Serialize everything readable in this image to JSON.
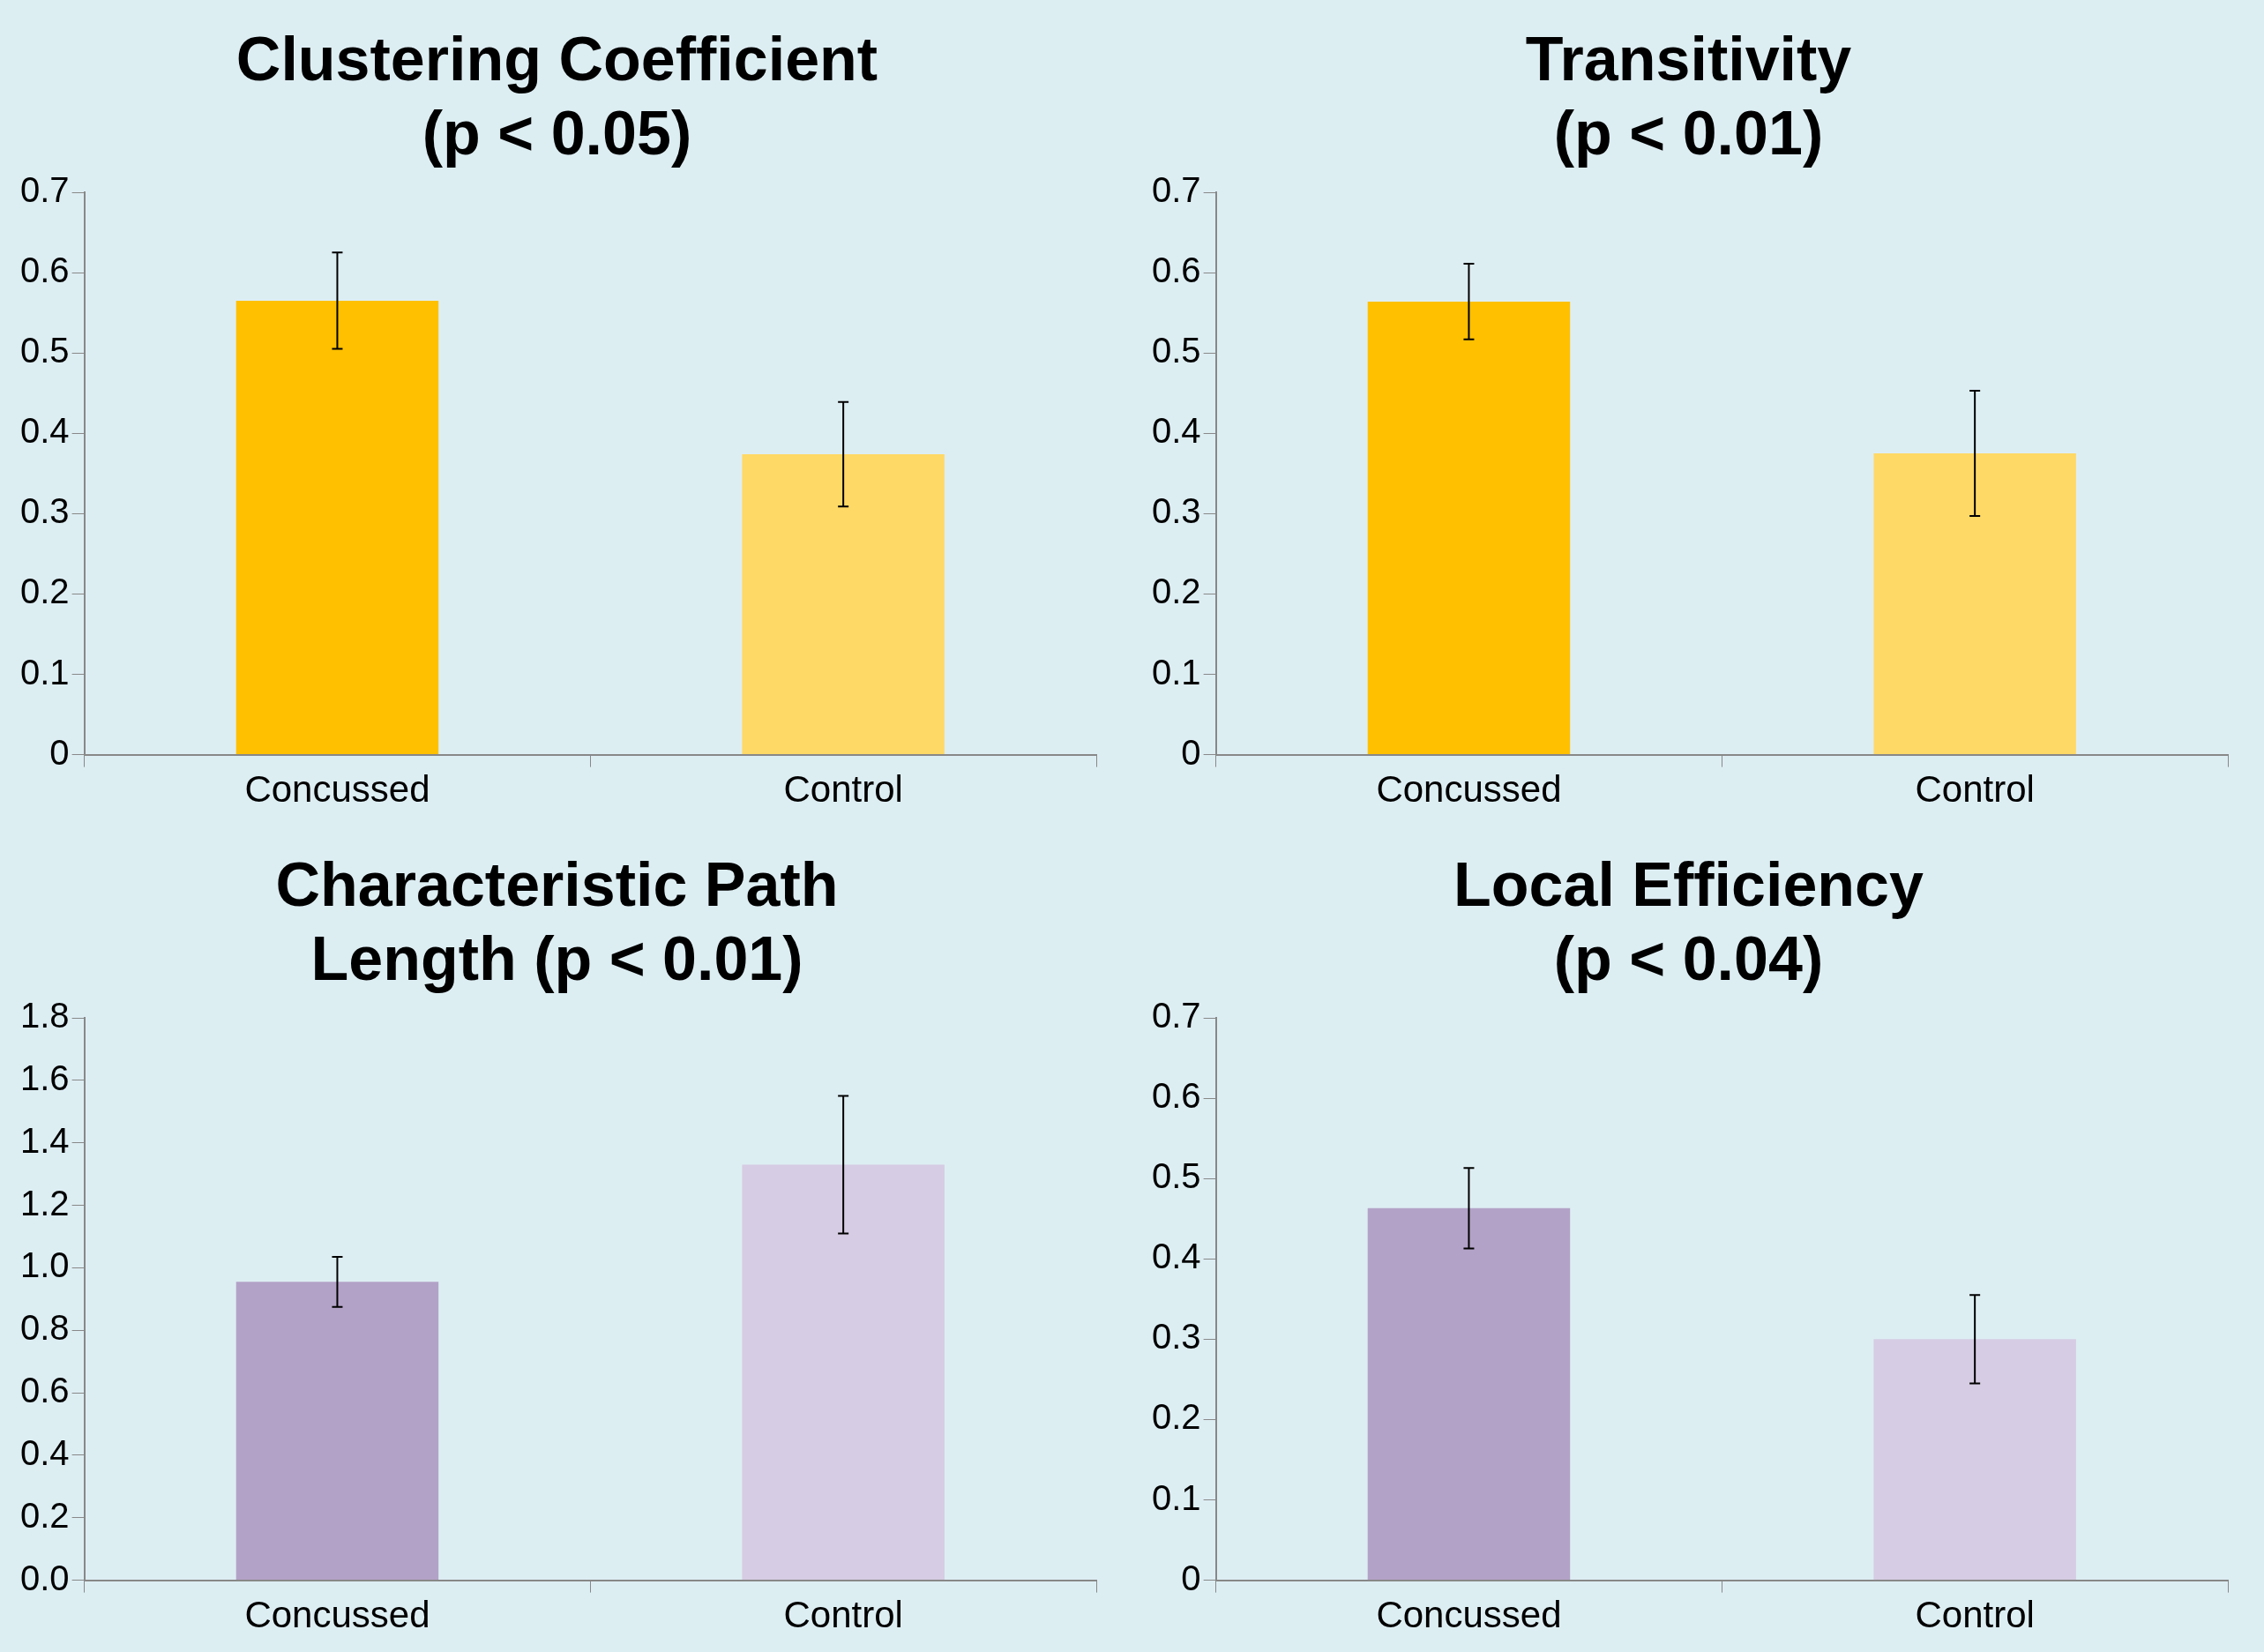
{
  "chart_data": [
    {
      "type": "bar",
      "title": "Clustering Coefficient\n(p < 0.05)",
      "categories": [
        "Concussed",
        "Control"
      ],
      "values": [
        0.565,
        0.374
      ],
      "errors": [
        0.06,
        0.065
      ],
      "colors": [
        "#ffc000",
        "#ffd966"
      ],
      "ylim": [
        0,
        0.7
      ],
      "yticks": [
        0,
        0.1,
        0.2,
        0.3,
        0.4,
        0.5,
        0.6,
        0.7
      ],
      "grid": false,
      "legend": false
    },
    {
      "type": "bar",
      "title": "Transitivity\n(p < 0.01)",
      "categories": [
        "Concussed",
        "Control"
      ],
      "values": [
        0.564,
        0.375
      ],
      "errors": [
        0.047,
        0.078
      ],
      "colors": [
        "#ffc000",
        "#ffd966"
      ],
      "ylim": [
        0,
        0.7
      ],
      "yticks": [
        0,
        0.1,
        0.2,
        0.3,
        0.4,
        0.5,
        0.6,
        0.7
      ],
      "grid": false,
      "legend": false
    },
    {
      "type": "bar",
      "title": "Characteristic Path\nLength (p < 0.01)",
      "categories": [
        "Concussed",
        "Control"
      ],
      "values": [
        0.955,
        1.33
      ],
      "errors": [
        0.08,
        0.22
      ],
      "colors": [
        "#b3a2c7",
        "#d6cce3"
      ],
      "ylim": [
        0,
        1.8
      ],
      "yticks": [
        {
          "value": 0,
          "label": "0.0"
        },
        0.2,
        0.4,
        0.6,
        0.8,
        {
          "value": 1,
          "label": "1.0"
        },
        1.2,
        1.4,
        1.6,
        1.8
      ],
      "grid": false,
      "legend": false
    },
    {
      "type": "bar",
      "title": "Local Efficiency\n(p < 0.04)",
      "categories": [
        "Concussed",
        "Control"
      ],
      "values": [
        0.463,
        0.3
      ],
      "errors": [
        0.05,
        0.055
      ],
      "colors": [
        "#b3a2c7",
        "#d6cce3"
      ],
      "ylim": [
        0,
        0.7
      ],
      "yticks": [
        0,
        0.1,
        0.2,
        0.3,
        0.4,
        0.5,
        0.6,
        0.7
      ],
      "grid": false,
      "legend": false
    }
  ]
}
